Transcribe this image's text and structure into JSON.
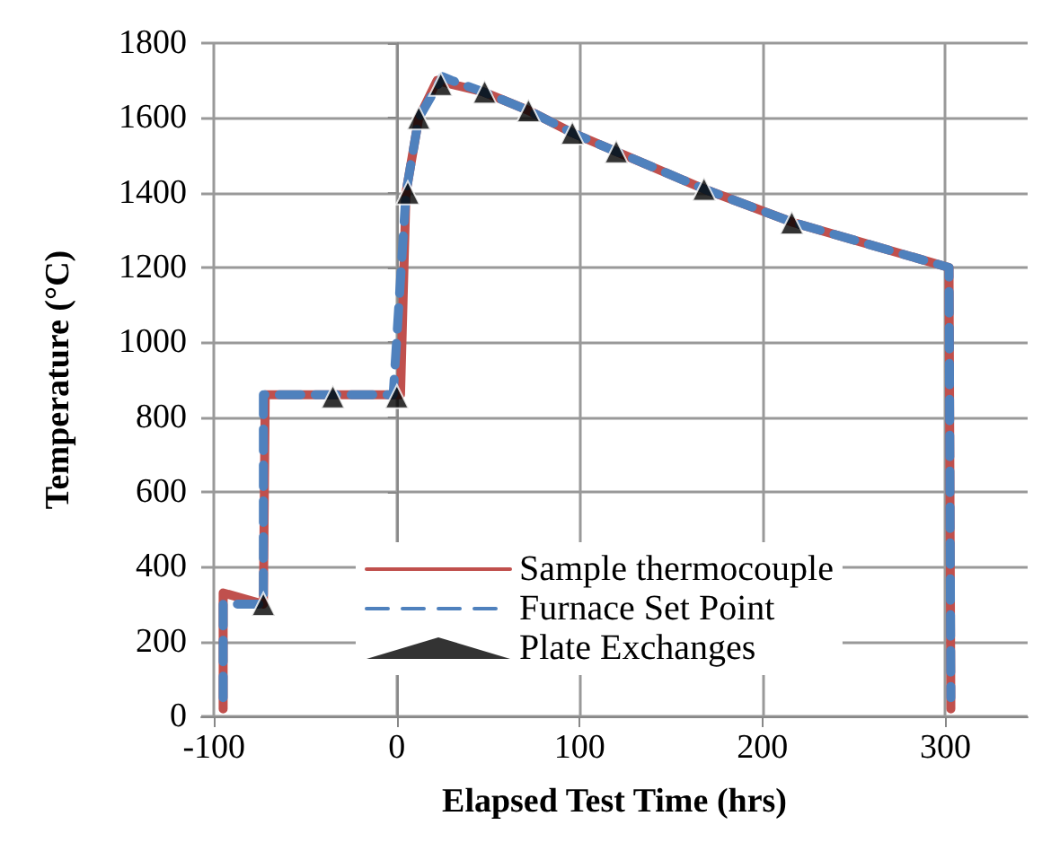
{
  "chart_data": {
    "type": "line",
    "xlabel": "Elapsed Test Time (hrs)",
    "ylabel": "Temperature (°C)",
    "xlim": [
      -107,
      345
    ],
    "xticks": [
      -100,
      0,
      100,
      200,
      300
    ],
    "ylim": [
      0,
      1800
    ],
    "yticks": [
      0,
      200,
      400,
      600,
      800,
      1000,
      1200,
      1400,
      1600,
      1800
    ],
    "grid": true,
    "legend": "bottom",
    "series": [
      {
        "name": "Sample thermocouple",
        "line_style": "solid",
        "color": "#c0504d",
        "x": [
          -95,
          -95,
          -73,
          -72,
          2,
          5,
          12,
          22,
          30,
          47,
          72,
          96,
          120,
          168,
          217,
          302,
          303
        ],
        "values": [
          20,
          330,
          300,
          860,
          860,
          1400,
          1600,
          1700,
          1690,
          1670,
          1620,
          1560,
          1510,
          1410,
          1320,
          1200,
          20
        ]
      },
      {
        "name": "Furnace Set Point",
        "line_style": "dashed",
        "color": "#4f81bd",
        "x": [
          -95,
          -95,
          -73,
          -73,
          -2,
          5,
          12,
          25,
          30,
          47,
          72,
          96,
          120,
          168,
          217,
          302,
          303
        ],
        "values": [
          50,
          300,
          300,
          860,
          860,
          1400,
          1600,
          1710,
          1700,
          1670,
          1620,
          1560,
          1510,
          1410,
          1320,
          1200,
          50
        ]
      },
      {
        "name": "Plate Exchanges",
        "type": "scatter",
        "marker": "triangle",
        "color": "#000000",
        "x": [
          -73,
          -35,
          0,
          6,
          12,
          24,
          48,
          72,
          96,
          120,
          168,
          216
        ],
        "values": [
          300,
          855,
          855,
          1400,
          1600,
          1690,
          1670,
          1620,
          1560,
          1510,
          1410,
          1320
        ]
      }
    ]
  }
}
